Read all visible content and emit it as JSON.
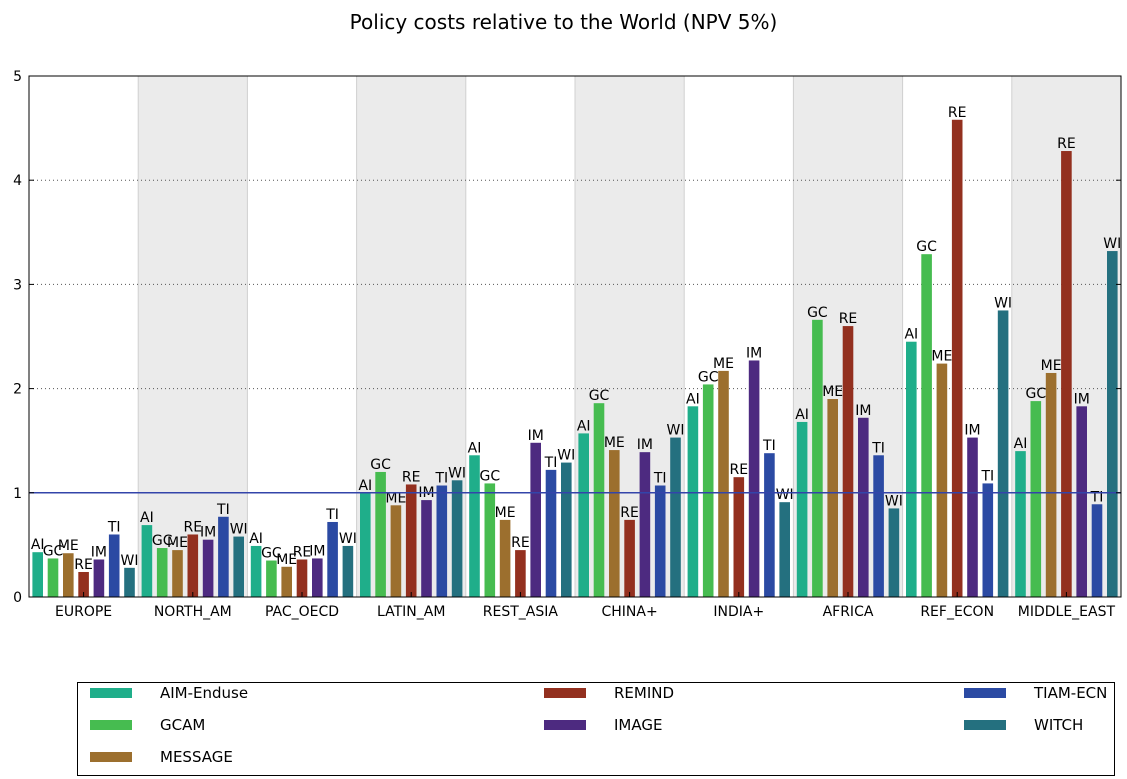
{
  "chart_data": {
    "type": "bar",
    "title": "Policy costs relative to the World (NPV 5%)",
    "xlabel": "",
    "ylabel": "",
    "ylim": [
      0,
      5
    ],
    "yticks": [
      "0",
      "1",
      "2",
      "3",
      "4",
      "5"
    ],
    "reference_line": 1,
    "grid": "horizontal dotted",
    "legend_position": "bottom",
    "categories": [
      "EUROPE",
      "NORTH_AM",
      "PAC_OECD",
      "LATIN_AM",
      "REST_ASIA",
      "CHINA+",
      "INDIA+",
      "AFRICA",
      "REF_ECON",
      "MIDDLE_EAST"
    ],
    "series": [
      {
        "name": "AIM-Enduse",
        "abbr": "AI",
        "color": "#1fae8a",
        "values": [
          0.43,
          0.69,
          0.49,
          1.0,
          1.36,
          1.57,
          1.83,
          1.68,
          2.45,
          1.4
        ]
      },
      {
        "name": "GCAM",
        "abbr": "GC",
        "color": "#46bc50",
        "values": [
          0.37,
          0.47,
          0.35,
          1.2,
          1.09,
          1.86,
          2.04,
          2.66,
          3.29,
          1.88
        ]
      },
      {
        "name": "MESSAGE",
        "abbr": "ME",
        "color": "#9c6f2e",
        "values": [
          0.42,
          0.45,
          0.29,
          0.88,
          0.74,
          1.41,
          2.17,
          1.9,
          2.24,
          2.15
        ]
      },
      {
        "name": "REMIND",
        "abbr": "RE",
        "color": "#93301f",
        "values": [
          0.24,
          0.6,
          0.36,
          1.08,
          0.45,
          0.74,
          1.15,
          2.6,
          4.58,
          4.28
        ]
      },
      {
        "name": "IMAGE",
        "abbr": "IM",
        "color": "#4d2a80",
        "values": [
          0.36,
          0.55,
          0.37,
          0.93,
          1.48,
          1.39,
          2.27,
          1.72,
          1.53,
          1.83
        ]
      },
      {
        "name": "TIAM-ECN",
        "abbr": "TI",
        "color": "#2b4aa3",
        "values": [
          0.6,
          0.77,
          0.72,
          1.07,
          1.22,
          1.07,
          1.38,
          1.36,
          1.09,
          0.89
        ]
      },
      {
        "name": "WITCH",
        "abbr": "WI",
        "color": "#24707f",
        "values": [
          0.28,
          0.58,
          0.49,
          1.12,
          1.29,
          1.53,
          0.91,
          0.85,
          2.75,
          3.32
        ]
      }
    ]
  }
}
